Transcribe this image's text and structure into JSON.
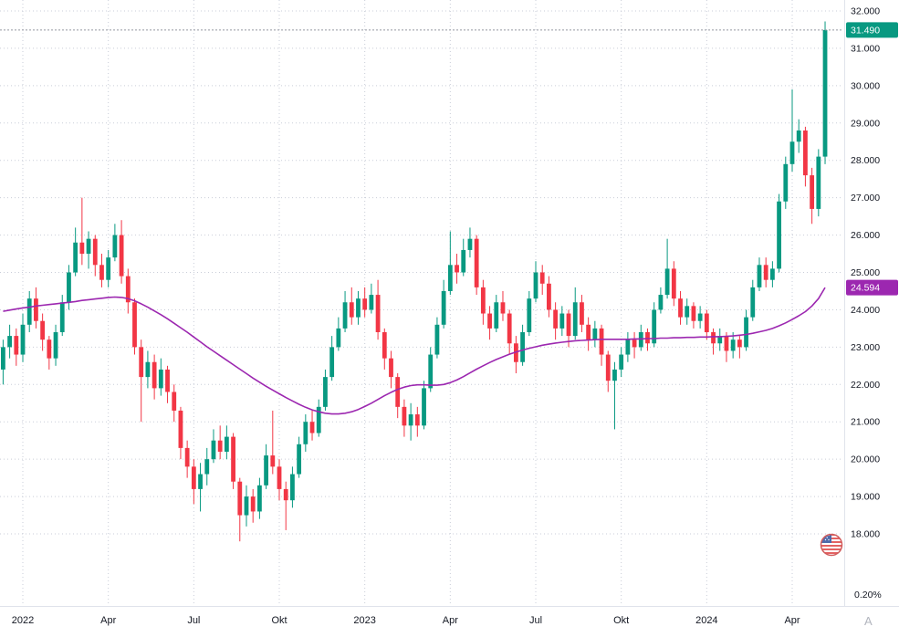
{
  "chart_data": {
    "type": "candlestick",
    "interval": "weekly",
    "title": "",
    "xlabel": "",
    "ylabel": "",
    "grid": true,
    "legend_position": "none",
    "last_price_label": "31.490",
    "ma_value_label": "24.594",
    "percent_axis_label": "0.20%",
    "watermark": "A",
    "colors": {
      "up": "#089981",
      "down": "#f23645",
      "ma": "#9c27b0",
      "ma_badge": "#9c27b0",
      "last_price_badge": "#089981",
      "axis_text": "#131722"
    },
    "y_axis": {
      "min": 17.5,
      "max": 32.3,
      "ticks": [
        "32.000",
        "31.000",
        "30.000",
        "29.000",
        "28.000",
        "27.000",
        "26.000",
        "25.000",
        "24.000",
        "23.000",
        "22.000",
        "21.000",
        "20.000",
        "19.000",
        "18.000"
      ]
    },
    "x_axis": {
      "ticks": [
        {
          "label": "2022",
          "week": 3
        },
        {
          "label": "Apr",
          "week": 16
        },
        {
          "label": "Jul",
          "week": 29
        },
        {
          "label": "Okt",
          "week": 42
        },
        {
          "label": "2023",
          "week": 55
        },
        {
          "label": "Apr",
          "week": 68
        },
        {
          "label": "Jul",
          "week": 81
        },
        {
          "label": "Okt",
          "week": 94
        },
        {
          "label": "2024",
          "week": 107
        },
        {
          "label": "Apr",
          "week": 120
        }
      ]
    },
    "series": [
      {
        "name": "price",
        "type": "candlestick",
        "ohlc": [
          [
            22.4,
            23.2,
            22.0,
            23.0
          ],
          [
            23.0,
            23.6,
            22.7,
            23.3
          ],
          [
            23.3,
            23.5,
            22.5,
            22.8
          ],
          [
            22.8,
            23.9,
            22.6,
            23.6
          ],
          [
            23.6,
            24.5,
            23.4,
            24.3
          ],
          [
            24.3,
            24.6,
            23.5,
            23.7
          ],
          [
            23.7,
            23.9,
            22.9,
            23.2
          ],
          [
            23.2,
            23.3,
            22.4,
            22.7
          ],
          [
            22.7,
            23.6,
            22.5,
            23.4
          ],
          [
            23.4,
            24.4,
            23.3,
            24.2
          ],
          [
            24.2,
            25.2,
            24.0,
            25.0
          ],
          [
            25.0,
            26.2,
            24.9,
            25.8
          ],
          [
            25.8,
            27.0,
            25.2,
            25.5
          ],
          [
            25.5,
            26.1,
            25.1,
            25.9
          ],
          [
            25.9,
            26.0,
            24.9,
            25.2
          ],
          [
            25.2,
            25.5,
            24.6,
            24.8
          ],
          [
            24.8,
            25.6,
            24.6,
            25.4
          ],
          [
            25.4,
            26.3,
            25.3,
            26.0
          ],
          [
            26.0,
            26.4,
            24.7,
            24.9
          ],
          [
            24.9,
            25.1,
            23.9,
            24.2
          ],
          [
            24.2,
            24.3,
            22.8,
            23.0
          ],
          [
            23.0,
            23.2,
            21.0,
            22.2
          ],
          [
            22.2,
            22.9,
            21.9,
            22.6
          ],
          [
            22.6,
            22.8,
            21.6,
            21.9
          ],
          [
            21.9,
            22.7,
            21.7,
            22.4
          ],
          [
            22.4,
            22.5,
            21.5,
            21.8
          ],
          [
            21.8,
            22.0,
            21.0,
            21.3
          ],
          [
            21.3,
            21.4,
            20.0,
            20.3
          ],
          [
            20.3,
            20.5,
            19.5,
            19.8
          ],
          [
            19.8,
            20.0,
            18.8,
            19.2
          ],
          [
            19.2,
            19.9,
            18.6,
            19.6
          ],
          [
            19.6,
            20.3,
            19.3,
            20.0
          ],
          [
            20.0,
            20.8,
            19.9,
            20.5
          ],
          [
            20.5,
            20.9,
            20.0,
            20.2
          ],
          [
            20.2,
            20.9,
            20.0,
            20.6
          ],
          [
            20.6,
            20.7,
            19.2,
            19.4
          ],
          [
            19.4,
            19.5,
            17.8,
            18.5
          ],
          [
            18.5,
            19.3,
            18.2,
            19.0
          ],
          [
            19.0,
            19.2,
            18.3,
            18.6
          ],
          [
            18.6,
            19.5,
            18.4,
            19.3
          ],
          [
            19.3,
            20.4,
            19.2,
            20.1
          ],
          [
            20.1,
            21.3,
            19.6,
            19.8
          ],
          [
            19.8,
            20.0,
            18.9,
            19.2
          ],
          [
            19.2,
            19.4,
            18.1,
            18.9
          ],
          [
            18.9,
            19.8,
            18.7,
            19.6
          ],
          [
            19.6,
            20.6,
            19.5,
            20.4
          ],
          [
            20.4,
            21.2,
            20.2,
            21.0
          ],
          [
            21.0,
            21.3,
            20.5,
            20.7
          ],
          [
            20.7,
            21.6,
            20.6,
            21.4
          ],
          [
            21.4,
            22.4,
            21.3,
            22.2
          ],
          [
            22.2,
            23.3,
            22.1,
            23.0
          ],
          [
            23.0,
            23.8,
            22.9,
            23.5
          ],
          [
            23.5,
            24.5,
            23.4,
            24.2
          ],
          [
            24.2,
            24.6,
            23.6,
            23.8
          ],
          [
            23.8,
            24.5,
            23.6,
            24.3
          ],
          [
            24.3,
            24.6,
            23.8,
            24.0
          ],
          [
            24.0,
            24.7,
            23.9,
            24.4
          ],
          [
            24.4,
            24.8,
            23.2,
            23.4
          ],
          [
            23.4,
            23.5,
            22.4,
            22.7
          ],
          [
            22.7,
            22.9,
            21.9,
            22.2
          ],
          [
            22.2,
            22.3,
            21.1,
            21.4
          ],
          [
            21.4,
            21.6,
            20.6,
            20.9
          ],
          [
            20.9,
            21.5,
            20.5,
            21.2
          ],
          [
            21.2,
            21.4,
            20.6,
            20.9
          ],
          [
            20.9,
            22.1,
            20.8,
            21.9
          ],
          [
            21.9,
            23.0,
            21.8,
            22.8
          ],
          [
            22.8,
            23.8,
            22.7,
            23.6
          ],
          [
            23.6,
            24.8,
            23.5,
            24.5
          ],
          [
            24.5,
            26.1,
            24.4,
            25.2
          ],
          [
            25.2,
            25.5,
            24.7,
            25.0
          ],
          [
            25.0,
            25.9,
            24.9,
            25.6
          ],
          [
            25.6,
            26.2,
            25.4,
            25.9
          ],
          [
            25.9,
            26.0,
            24.4,
            24.6
          ],
          [
            24.6,
            24.8,
            23.6,
            23.9
          ],
          [
            23.9,
            24.1,
            23.2,
            23.5
          ],
          [
            23.5,
            24.4,
            23.4,
            24.2
          ],
          [
            24.2,
            24.5,
            23.7,
            23.9
          ],
          [
            23.9,
            24.0,
            22.8,
            23.1
          ],
          [
            23.1,
            23.3,
            22.3,
            22.6
          ],
          [
            22.6,
            23.6,
            22.5,
            23.4
          ],
          [
            23.4,
            24.5,
            23.3,
            24.3
          ],
          [
            24.3,
            25.3,
            24.2,
            25.0
          ],
          [
            25.0,
            25.2,
            24.4,
            24.7
          ],
          [
            24.7,
            24.9,
            23.8,
            24.0
          ],
          [
            24.0,
            24.2,
            23.2,
            23.5
          ],
          [
            23.5,
            24.1,
            23.3,
            23.9
          ],
          [
            23.9,
            24.0,
            23.0,
            23.3
          ],
          [
            23.3,
            24.6,
            23.2,
            24.2
          ],
          [
            24.2,
            24.4,
            23.4,
            23.6
          ],
          [
            23.6,
            23.8,
            22.9,
            23.2
          ],
          [
            23.2,
            23.7,
            23.0,
            23.5
          ],
          [
            23.5,
            23.6,
            22.5,
            22.8
          ],
          [
            22.8,
            22.9,
            21.8,
            22.1
          ],
          [
            22.1,
            22.6,
            20.8,
            22.4
          ],
          [
            22.4,
            23.0,
            22.2,
            22.8
          ],
          [
            22.8,
            23.4,
            22.6,
            23.2
          ],
          [
            23.2,
            23.4,
            22.7,
            23.0
          ],
          [
            23.0,
            23.6,
            22.9,
            23.4
          ],
          [
            23.4,
            23.5,
            22.9,
            23.1
          ],
          [
            23.1,
            24.2,
            23.0,
            24.0
          ],
          [
            24.0,
            24.6,
            23.9,
            24.4
          ],
          [
            24.4,
            25.9,
            24.3,
            25.1
          ],
          [
            25.1,
            25.3,
            24.1,
            24.3
          ],
          [
            24.3,
            24.5,
            23.6,
            23.8
          ],
          [
            23.8,
            24.3,
            23.6,
            24.1
          ],
          [
            24.1,
            24.2,
            23.5,
            23.7
          ],
          [
            23.7,
            24.1,
            23.5,
            23.9
          ],
          [
            23.9,
            24.0,
            23.2,
            23.4
          ],
          [
            23.4,
            23.5,
            22.8,
            23.1
          ],
          [
            23.1,
            23.5,
            22.9,
            23.3
          ],
          [
            23.3,
            23.4,
            22.6,
            22.9
          ],
          [
            22.9,
            23.4,
            22.7,
            23.2
          ],
          [
            23.2,
            23.3,
            22.7,
            23.0
          ],
          [
            23.0,
            24.0,
            22.9,
            23.8
          ],
          [
            23.8,
            24.8,
            23.7,
            24.6
          ],
          [
            24.6,
            25.4,
            24.5,
            25.2
          ],
          [
            25.2,
            25.4,
            24.6,
            24.8
          ],
          [
            24.8,
            25.3,
            24.6,
            25.1
          ],
          [
            25.1,
            27.1,
            25.0,
            26.9
          ],
          [
            26.9,
            28.1,
            26.7,
            27.9
          ],
          [
            27.9,
            29.9,
            27.7,
            28.5
          ],
          [
            28.5,
            29.1,
            28.2,
            28.8
          ],
          [
            28.8,
            28.9,
            27.3,
            27.6
          ],
          [
            27.6,
            27.8,
            26.3,
            26.7
          ],
          [
            26.7,
            28.3,
            26.5,
            28.1
          ],
          [
            28.1,
            31.72,
            27.9,
            31.49
          ]
        ]
      },
      {
        "name": "moving-average",
        "type": "line",
        "values": [
          23.96,
          23.99,
          24.02,
          24.05,
          24.07,
          24.1,
          24.12,
          24.14,
          24.16,
          24.18,
          24.2,
          24.22,
          24.25,
          24.27,
          24.29,
          24.31,
          24.33,
          24.34,
          24.33,
          24.3,
          24.24,
          24.16,
          24.07,
          23.97,
          23.87,
          23.76,
          23.64,
          23.52,
          23.4,
          23.27,
          23.14,
          23.01,
          22.89,
          22.77,
          22.65,
          22.53,
          22.41,
          22.29,
          22.17,
          22.06,
          21.95,
          21.85,
          21.75,
          21.65,
          21.56,
          21.47,
          21.39,
          21.32,
          21.27,
          21.23,
          21.21,
          21.21,
          21.23,
          21.27,
          21.33,
          21.41,
          21.5,
          21.6,
          21.7,
          21.79,
          21.87,
          21.93,
          21.97,
          21.99,
          21.99,
          21.98,
          21.98,
          22.0,
          22.05,
          22.12,
          22.21,
          22.31,
          22.41,
          22.5,
          22.59,
          22.67,
          22.74,
          22.81,
          22.87,
          22.92,
          22.97,
          23.01,
          23.05,
          23.08,
          23.11,
          23.13,
          23.15,
          23.17,
          23.18,
          23.19,
          23.2,
          23.21,
          23.21,
          23.21,
          23.21,
          23.21,
          23.22,
          23.22,
          23.23,
          23.23,
          23.24,
          23.24,
          23.25,
          23.25,
          23.26,
          23.26,
          23.27,
          23.27,
          23.28,
          23.28,
          23.29,
          23.3,
          23.32,
          23.34,
          23.37,
          23.41,
          23.45,
          23.5,
          23.57,
          23.65,
          23.74,
          23.84,
          23.95,
          24.1,
          24.3,
          24.594
        ]
      }
    ]
  }
}
